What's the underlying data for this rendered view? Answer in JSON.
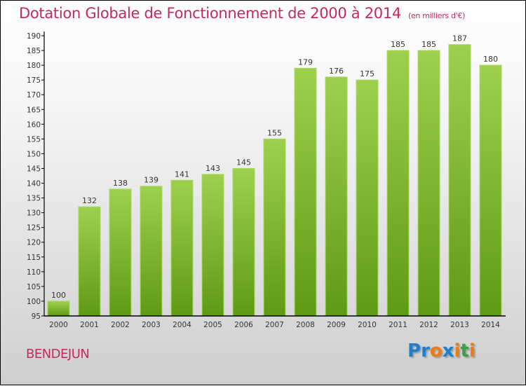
{
  "chart_data": {
    "type": "bar",
    "title": "Dotation Globale de Fonctionnement de 2000 à 2014",
    "subtitle": "(en milliers d'€)",
    "categories": [
      "2000",
      "2001",
      "2002",
      "2003",
      "2004",
      "2005",
      "2006",
      "2007",
      "2008",
      "2009",
      "2010",
      "2011",
      "2012",
      "2013",
      "2014"
    ],
    "values": [
      100,
      132,
      138,
      139,
      141,
      143,
      145,
      155,
      179,
      176,
      175,
      185,
      185,
      187,
      180
    ],
    "ylim": [
      95,
      190
    ],
    "yticks": [
      95,
      100,
      105,
      110,
      115,
      120,
      125,
      130,
      135,
      140,
      145,
      150,
      155,
      160,
      165,
      170,
      175,
      180,
      185,
      190
    ],
    "xlabel": "",
    "ylabel": "",
    "grid": false,
    "bar_color": "#7cb82f"
  },
  "footer": {
    "city": "BENDEJUN",
    "logo": "Proxiti"
  },
  "colors": {
    "title": "#c42a5a"
  }
}
